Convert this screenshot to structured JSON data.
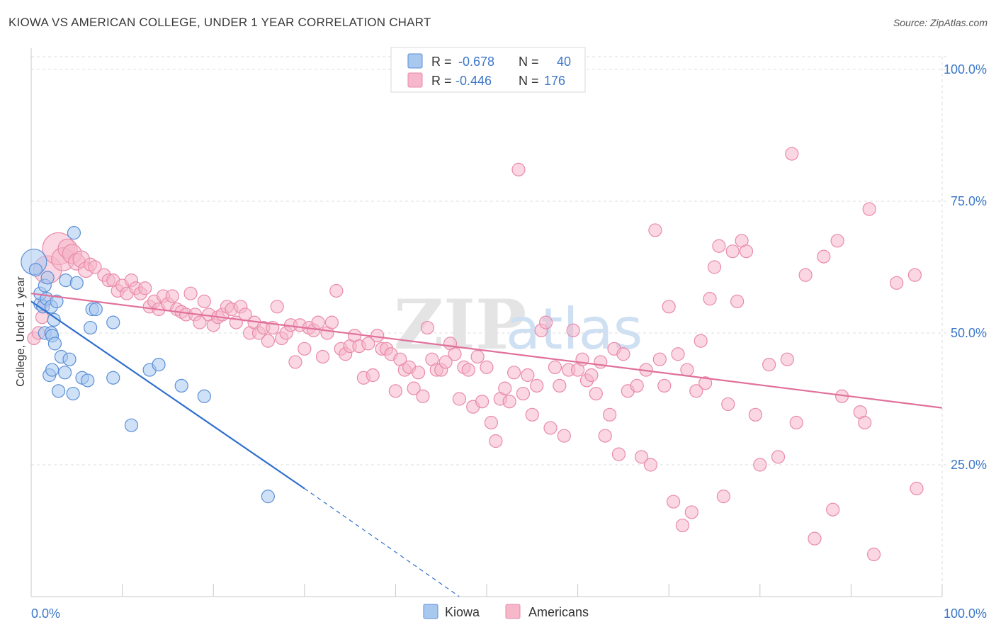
{
  "header": {
    "title": "KIOWA VS AMERICAN COLLEGE, UNDER 1 YEAR CORRELATION CHART",
    "source": "Source: ZipAtlas.com"
  },
  "watermark": {
    "zip": "ZIP",
    "atlas": "atlas"
  },
  "colors": {
    "kiowa_fill": "#a8c8f0",
    "kiowa_stroke": "#5b8fd6",
    "kiowa_line": "#2f6fce",
    "americans_fill": "#f6b7cb",
    "americans_stroke": "#e98aa9",
    "americans_line": "#e0709a",
    "tick_label": "#3d78c8",
    "grid": "#dddddd"
  },
  "legend": {
    "rows": [
      {
        "r_label": "R = ",
        "r_value": "-0.678",
        "n_label": "N = ",
        "n_value": "40"
      },
      {
        "r_label": "R = ",
        "r_value": "-0.446",
        "n_label": "N = ",
        "n_value": "176"
      }
    ]
  },
  "bottom_legend": [
    "Kiowa",
    "Americans"
  ],
  "chart_data": {
    "type": "scatter",
    "title": "KIOWA VS AMERICAN COLLEGE, UNDER 1 YEAR CORRELATION CHART",
    "xlabel": "",
    "ylabel": "College, Under 1 year",
    "xlim": [
      0,
      100
    ],
    "ylim": [
      0,
      100
    ],
    "x_tick_labels": [
      "0.0%",
      "100.0%"
    ],
    "y_ticks": [
      25,
      50,
      75,
      100
    ],
    "y_tick_labels": [
      "25.0%",
      "50.0%",
      "75.0%",
      "100.0%"
    ],
    "grid": true,
    "series": [
      {
        "name": "Kiowa",
        "r": -0.678,
        "n": 40,
        "trend": {
          "x0": 0,
          "y0": 56,
          "x1": 30,
          "y1": 20.5,
          "dash_to_x": 47,
          "dash_to_y": 0
        },
        "points": [
          [
            0.3,
            63.5,
            2
          ],
          [
            0.5,
            62,
            1
          ],
          [
            1,
            55.5,
            1
          ],
          [
            1,
            57.5,
            1
          ],
          [
            1.3,
            55,
            1
          ],
          [
            1.5,
            59,
            1
          ],
          [
            1.5,
            50,
            1
          ],
          [
            1.7,
            56.5,
            1
          ],
          [
            1.8,
            60.5,
            1
          ],
          [
            2,
            42,
            1
          ],
          [
            2.2,
            55,
            1
          ],
          [
            2.2,
            50,
            1
          ],
          [
            2.3,
            43,
            1
          ],
          [
            2.3,
            49.5,
            1
          ],
          [
            2.5,
            52.5,
            1
          ],
          [
            2.6,
            48,
            1
          ],
          [
            2.8,
            56,
            1
          ],
          [
            3,
            39,
            1
          ],
          [
            3.3,
            45.5,
            1
          ],
          [
            3.7,
            42.5,
            1
          ],
          [
            3.8,
            60,
            1
          ],
          [
            4.2,
            45,
            1
          ],
          [
            4.6,
            38.5,
            1
          ],
          [
            4.7,
            69,
            1
          ],
          [
            5,
            59.5,
            1
          ],
          [
            5.6,
            41.5,
            1
          ],
          [
            6.2,
            41,
            1
          ],
          [
            6.5,
            51,
            1
          ],
          [
            6.7,
            54.5,
            1
          ],
          [
            7.1,
            54.5,
            1
          ],
          [
            9,
            41.5,
            1
          ],
          [
            9,
            52,
            1
          ],
          [
            11,
            32.5,
            1
          ],
          [
            13,
            43,
            1
          ],
          [
            14,
            44,
            1
          ],
          [
            16.5,
            40,
            1
          ],
          [
            19,
            38,
            1
          ],
          [
            26,
            19,
            1
          ]
        ]
      },
      {
        "name": "Americans",
        "r": -0.446,
        "n": 176,
        "trend": {
          "x0": 0,
          "y0": 57.5,
          "x1": 100,
          "y1": 35.8
        },
        "points": [
          [
            0.3,
            49,
            1
          ],
          [
            0.8,
            50,
            1
          ],
          [
            1.2,
            53,
            1
          ],
          [
            1.5,
            56,
            1
          ],
          [
            1.8,
            62,
            2.2
          ],
          [
            3,
            66,
            2.5
          ],
          [
            3.5,
            64,
            1.8
          ],
          [
            4,
            66,
            1.5
          ],
          [
            4.5,
            65,
            1.5
          ],
          [
            5,
            63.5,
            1.3
          ],
          [
            5.5,
            64,
            1.3
          ],
          [
            6,
            62,
            1.2
          ],
          [
            6.5,
            63,
            1
          ],
          [
            7,
            62.5,
            1
          ],
          [
            8,
            61,
            1
          ],
          [
            8.5,
            60,
            1
          ],
          [
            9,
            60,
            1
          ],
          [
            9.5,
            58,
            1
          ],
          [
            10,
            59,
            1
          ],
          [
            10.5,
            57.5,
            1
          ],
          [
            11,
            60,
            1
          ],
          [
            11.5,
            58.5,
            1
          ],
          [
            12,
            57.5,
            1
          ],
          [
            12.5,
            58.5,
            1
          ],
          [
            13,
            55,
            1
          ],
          [
            13.5,
            56,
            1
          ],
          [
            14,
            54.5,
            1
          ],
          [
            14.5,
            57,
            1
          ],
          [
            15,
            55.5,
            1
          ],
          [
            15.5,
            57,
            1
          ],
          [
            16,
            54.5,
            1
          ],
          [
            16.5,
            54,
            1
          ],
          [
            17,
            53.5,
            1
          ],
          [
            17.5,
            57.5,
            1
          ],
          [
            18,
            53.5,
            1
          ],
          [
            18.5,
            52,
            1
          ],
          [
            19,
            56,
            1
          ],
          [
            19.5,
            53.5,
            1
          ],
          [
            20,
            51.5,
            1
          ],
          [
            20.5,
            53,
            1
          ],
          [
            21,
            53.5,
            1
          ],
          [
            21.5,
            55,
            1
          ],
          [
            22,
            54.5,
            1
          ],
          [
            22.5,
            52,
            1
          ],
          [
            23,
            55,
            1
          ],
          [
            23.5,
            53.5,
            1
          ],
          [
            24,
            50,
            1
          ],
          [
            24.5,
            52,
            1
          ],
          [
            25,
            50,
            1
          ],
          [
            25.5,
            51,
            1
          ],
          [
            26,
            48.5,
            1
          ],
          [
            26.5,
            51,
            1
          ],
          [
            27,
            55,
            1
          ],
          [
            27.5,
            49,
            1
          ],
          [
            28,
            50,
            1
          ],
          [
            28.5,
            51.5,
            1
          ],
          [
            29,
            44.5,
            1
          ],
          [
            29.5,
            51.5,
            1
          ],
          [
            30,
            47,
            1
          ],
          [
            30.5,
            51,
            1
          ],
          [
            31,
            50.5,
            1
          ],
          [
            31.5,
            52,
            1
          ],
          [
            32,
            45.5,
            1
          ],
          [
            32.5,
            50,
            1
          ],
          [
            33,
            52,
            1
          ],
          [
            33.5,
            58,
            1
          ],
          [
            34,
            47,
            1
          ],
          [
            34.5,
            46,
            1
          ],
          [
            35,
            47.5,
            1
          ],
          [
            35.5,
            49.5,
            1
          ],
          [
            36,
            47.5,
            1
          ],
          [
            36.5,
            41.5,
            1
          ],
          [
            37,
            48,
            1
          ],
          [
            37.5,
            42,
            1
          ],
          [
            38,
            49.5,
            1
          ],
          [
            38.5,
            47,
            1
          ],
          [
            39,
            47,
            1
          ],
          [
            39.5,
            46,
            1
          ],
          [
            40,
            39,
            1
          ],
          [
            40.5,
            45,
            1
          ],
          [
            41,
            43,
            1
          ],
          [
            41.5,
            43.5,
            1
          ],
          [
            42,
            39.5,
            1
          ],
          [
            42.5,
            42.5,
            1
          ],
          [
            43,
            38,
            1
          ],
          [
            43.5,
            51,
            1
          ],
          [
            44,
            45,
            1
          ],
          [
            44.5,
            43,
            1
          ],
          [
            45,
            43,
            1
          ],
          [
            45.5,
            44.5,
            1
          ],
          [
            46,
            48,
            1
          ],
          [
            46.5,
            46,
            1
          ],
          [
            47,
            37.5,
            1
          ],
          [
            47.5,
            43.5,
            1
          ],
          [
            48,
            43,
            1
          ],
          [
            48.5,
            36,
            1
          ],
          [
            49,
            45.5,
            1
          ],
          [
            49.5,
            37,
            1
          ],
          [
            50,
            43.5,
            1
          ],
          [
            50.5,
            33,
            1
          ],
          [
            51,
            29.5,
            1
          ],
          [
            51.5,
            37.5,
            1
          ],
          [
            52,
            39.5,
            1
          ],
          [
            52.5,
            37,
            1
          ],
          [
            53,
            42.5,
            1
          ],
          [
            53.5,
            81,
            1
          ],
          [
            54,
            38.5,
            1
          ],
          [
            54.5,
            42,
            1
          ],
          [
            55,
            34.5,
            1
          ],
          [
            55.5,
            40,
            1
          ],
          [
            56,
            50.5,
            1
          ],
          [
            56.5,
            52,
            1
          ],
          [
            57,
            32,
            1
          ],
          [
            57.5,
            43.5,
            1
          ],
          [
            58,
            40,
            1
          ],
          [
            58.5,
            30.5,
            1
          ],
          [
            59,
            43,
            1
          ],
          [
            59.5,
            50.5,
            1
          ],
          [
            60,
            43,
            1
          ],
          [
            60.5,
            45,
            1
          ],
          [
            61,
            41,
            1
          ],
          [
            61.5,
            42,
            1
          ],
          [
            62,
            38.5,
            1
          ],
          [
            62.5,
            44.5,
            1
          ],
          [
            63,
            30.5,
            1
          ],
          [
            63.5,
            34.5,
            1
          ],
          [
            64,
            47,
            1
          ],
          [
            64.5,
            27,
            1
          ],
          [
            65,
            46,
            1
          ],
          [
            65.5,
            39,
            1
          ],
          [
            66.5,
            40,
            1
          ],
          [
            67,
            26.5,
            1
          ],
          [
            67.5,
            43,
            1
          ],
          [
            68,
            25,
            1
          ],
          [
            68.5,
            69.5,
            1
          ],
          [
            69,
            45,
            1
          ],
          [
            69.5,
            40,
            1
          ],
          [
            70,
            55,
            1
          ],
          [
            70.5,
            18,
            1
          ],
          [
            71,
            46,
            1
          ],
          [
            71.5,
            13.5,
            1
          ],
          [
            72,
            43,
            1
          ],
          [
            72.5,
            16,
            1
          ],
          [
            73,
            39,
            1
          ],
          [
            73.5,
            48.5,
            1
          ],
          [
            74,
            40.5,
            1
          ],
          [
            74.5,
            56.5,
            1
          ],
          [
            75,
            62.5,
            1
          ],
          [
            75.5,
            66.5,
            1
          ],
          [
            76,
            19,
            1
          ],
          [
            76.5,
            36.5,
            1
          ],
          [
            77,
            65.5,
            1
          ],
          [
            77.5,
            56,
            1
          ],
          [
            78,
            67.5,
            1
          ],
          [
            78.5,
            65.5,
            1
          ],
          [
            79.5,
            34.5,
            1
          ],
          [
            80,
            25,
            1
          ],
          [
            81,
            44,
            1
          ],
          [
            82,
            26.5,
            1
          ],
          [
            83,
            45,
            1
          ],
          [
            83.5,
            84,
            1
          ],
          [
            84,
            33,
            1
          ],
          [
            85,
            61,
            1
          ],
          [
            86,
            11,
            1
          ],
          [
            87,
            64.5,
            1
          ],
          [
            88,
            16.5,
            1
          ],
          [
            88.5,
            67.5,
            1
          ],
          [
            89,
            38,
            1
          ],
          [
            91,
            35,
            1
          ],
          [
            91.5,
            33,
            1
          ],
          [
            92,
            73.5,
            1
          ],
          [
            92.5,
            8,
            1
          ],
          [
            95,
            59.5,
            1
          ],
          [
            97,
            61,
            1
          ],
          [
            97.2,
            20.5,
            1
          ]
        ]
      }
    ]
  }
}
